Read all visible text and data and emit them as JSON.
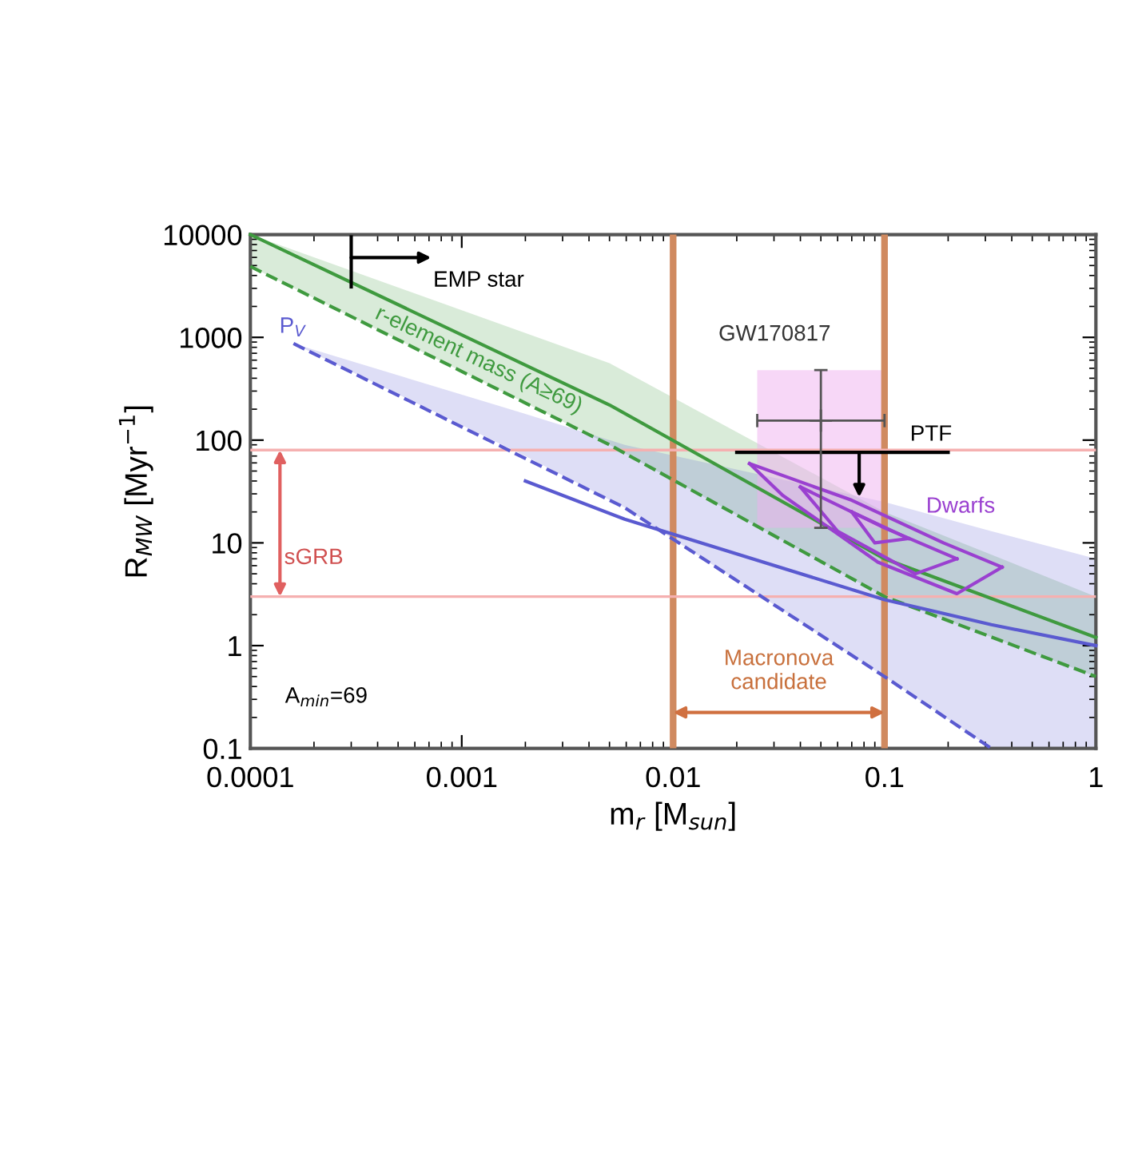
{
  "chart_data": {
    "type": "line",
    "xlabel": "m$_{r}$ [M$_{sun}$]",
    "ylabel": "R$_{MW}$ [Myr$^{−1}$]",
    "log": "xy",
    "xlim": [
      0.0001,
      1
    ],
    "ylim": [
      0.1,
      10000
    ],
    "xticks": [
      0.0001,
      0.001,
      0.01,
      0.1,
      1
    ],
    "yticks": [
      0.1,
      1,
      10,
      100,
      1000,
      10000
    ],
    "grid": false,
    "legend": false,
    "marker": "none",
    "series": [
      {
        "color": "#3f9a3f",
        "line_style": "solid",
        "x": [
          0.0001,
          0.005,
          0.1,
          1
        ],
        "values": [
          10000,
          220,
          7,
          1.2
        ],
        "lower": [
          4900,
          90,
          3,
          0.5
        ],
        "upper": [
          10000,
          560,
          20,
          3
        ]
      },
      {
        "color": "#3f9a3f",
        "line_style": "dashed",
        "x": [
          0.0001,
          0.005,
          0.1,
          1
        ],
        "values": [
          4900,
          90,
          3,
          0.5
        ]
      },
      {
        "color": "#5a5ad0",
        "line_style": "solid",
        "x": [
          0.00016,
          0.002,
          0.0059,
          0.1,
          0.32,
          1
        ],
        "values": [
          null,
          40,
          17,
          2.8,
          1.6,
          1
        ],
        "lower": [
          870,
          70,
          22,
          0.5,
          0.1,
          0.1
        ],
        "upper": [
          870,
          180,
          90,
          25,
          13,
          7
        ]
      },
      {
        "color": "#5a5ad0",
        "line_style": "dashed",
        "x": [
          0.00016,
          0.0059,
          0.1,
          0.32
        ],
        "values": [
          870,
          22,
          0.5,
          0.1
        ]
      },
      {
        "color": "#9a40d0",
        "line_style": "solid",
        "x": [
          0.023,
          0.07,
          0.19,
          0.36
        ],
        "values": [
          59,
          26,
          10,
          5.8
        ]
      },
      {
        "color": "#9a40d0",
        "line_style": "solid",
        "x": [
          0.023,
          0.033,
          0.093,
          0.22,
          0.36
        ],
        "values": [
          59,
          29,
          6.5,
          3.2,
          5.8
        ]
      },
      {
        "color": "#9a40d0",
        "line_style": "solid",
        "x": [
          0.04,
          0.1,
          0.22
        ],
        "values": [
          35,
          14,
          7
        ]
      },
      {
        "color": "#9a40d0",
        "line_style": "solid",
        "x": [
          0.04,
          0.06,
          0.14,
          0.22
        ],
        "values": [
          35,
          13,
          5,
          7
        ]
      },
      {
        "color": "#9a40d0",
        "line_style": "solid",
        "x": [
          0.07,
          0.13
        ],
        "values": [
          20,
          11
        ]
      },
      {
        "color": "#9a40d0",
        "line_style": "solid",
        "x": [
          0.07,
          0.09,
          0.13
        ],
        "values": [
          20,
          10,
          11
        ]
      },
      {
        "color": "#000000",
        "line_style": "solid",
        "x": [
          0.0003,
          0.0003
        ],
        "values": [
          9500,
          3100
        ]
      },
      {
        "color": "#000000",
        "line_style": "solid",
        "x": [
          0.02,
          0.2
        ],
        "values": [
          76,
          76
        ]
      },
      {
        "type": "scatter",
        "color": "#555555",
        "marker": "cross",
        "x": [
          0.05
        ],
        "values": [
          155
        ],
        "errors": [
          [
            14,
            480
          ]
        ],
        "xerrors": [
          [
            0.025,
            0.1
          ]
        ]
      }
    ],
    "ref_lines": [
      {
        "axis": "x",
        "value": 0.01,
        "color": "#d08a60",
        "line_style": "solid"
      },
      {
        "axis": "x",
        "value": 0.1,
        "color": "#d08a60",
        "line_style": "solid"
      },
      {
        "axis": "y",
        "value": 80,
        "color": "#f5b0b0",
        "line_style": "solid"
      },
      {
        "axis": "y",
        "value": 3,
        "color": "#f5b0b0",
        "line_style": "solid"
      }
    ],
    "annotations": [
      "EMP star",
      "PTF",
      "r-element mass (A≥69)",
      "P$_{V}$",
      "Dwarfs",
      "GW170817",
      "A$_{min}$=69",
      "sGRB",
      "Macronova\ncandidate"
    ]
  }
}
